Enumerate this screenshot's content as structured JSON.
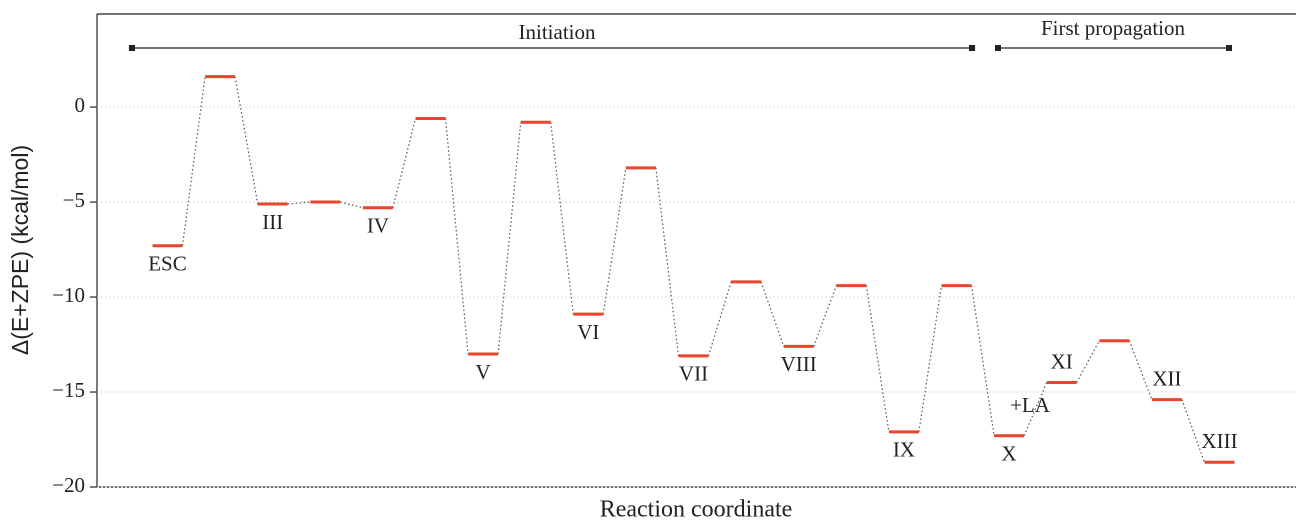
{
  "chart_data": {
    "type": "energy-profile",
    "xlabel": "Reaction coordinate",
    "ylabel": "Δ(E+ZPE) (kcal/mol)",
    "categories": [
      "ESC",
      null,
      "III",
      null,
      "IV",
      null,
      "V",
      null,
      "VI",
      null,
      "VII",
      null,
      "VIII",
      null,
      "IX",
      null,
      "X",
      "XI",
      null,
      "XII",
      "XIII"
    ],
    "values": [
      -7.3,
      1.6,
      -5.1,
      -5.0,
      -5.3,
      -0.6,
      -13.0,
      -0.8,
      -10.9,
      -3.2,
      -13.1,
      -9.2,
      -12.6,
      -9.4,
      -17.1,
      -9.4,
      -17.3,
      -14.5,
      -12.3,
      -15.4,
      -18.7
    ],
    "color": "#e8462a",
    "ylim": [
      -20,
      4.9
    ],
    "yticks": [
      {
        "value": -20,
        "label": "−20"
      },
      {
        "value": -15,
        "label": "−15"
      },
      {
        "value": -10,
        "label": "−10"
      },
      {
        "value": -5,
        "label": "−5"
      },
      0
    ],
    "grid": true,
    "phases": [
      "Initiation",
      "First propagation"
    ],
    "annotations": [
      "+LA"
    ]
  }
}
